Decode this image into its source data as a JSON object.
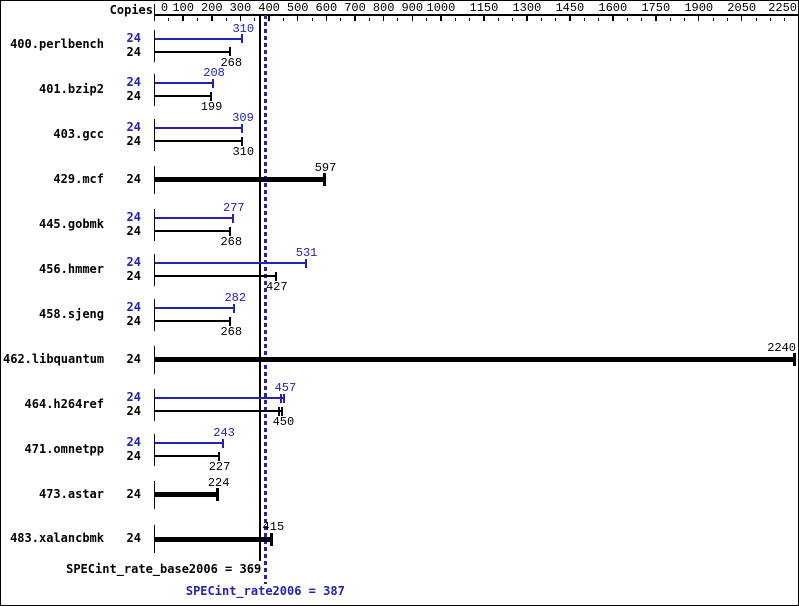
{
  "chart_data": {
    "type": "bar",
    "orientation": "horizontal",
    "copies_header": "Copies",
    "accent_color": "#2222b4",
    "base_color": "#000000",
    "axis": {
      "position": "top",
      "min": 0,
      "max": 2250,
      "major_ticks": [
        0,
        100,
        200,
        300,
        400,
        500,
        600,
        700,
        800,
        900,
        1000,
        1150,
        1300,
        1450,
        1600,
        1750,
        1900,
        2050,
        2250
      ],
      "minor_tick_step": 50,
      "grid": false
    },
    "legend_note": "blue bar = peak (SPECint_rate2006), black bar = base; bold single bar = base and peak identical",
    "benchmarks": [
      {
        "name": "400.perlbench",
        "copies_peak": 24,
        "copies_base": 24,
        "peak": 310,
        "base": 268
      },
      {
        "name": "401.bzip2",
        "copies_peak": 24,
        "copies_base": 24,
        "peak": 208,
        "base": 199
      },
      {
        "name": "403.gcc",
        "copies_peak": 24,
        "copies_base": 24,
        "peak": 309,
        "base": 310
      },
      {
        "name": "429.mcf",
        "copies": 24,
        "single": 597
      },
      {
        "name": "445.gobmk",
        "copies_peak": 24,
        "copies_base": 24,
        "peak": 277,
        "base": 268
      },
      {
        "name": "456.hmmer",
        "copies_peak": 24,
        "copies_base": 24,
        "peak": 531,
        "base": 427
      },
      {
        "name": "458.sjeng",
        "copies_peak": 24,
        "copies_base": 24,
        "peak": 282,
        "base": 268
      },
      {
        "name": "462.libquantum",
        "copies": 24,
        "single": 2240
      },
      {
        "name": "464.h264ref",
        "copies_peak": 24,
        "copies_base": 24,
        "peak": 457,
        "base": 450,
        "run_ticks": true
      },
      {
        "name": "471.omnetpp",
        "copies_peak": 24,
        "copies_base": 24,
        "peak": 243,
        "base": 227
      },
      {
        "name": "473.astar",
        "copies": 24,
        "single": 224
      },
      {
        "name": "483.xalancbmk",
        "copies": 24,
        "single": 415
      }
    ],
    "summary": {
      "separator": " = ",
      "base": {
        "label": "SPECint_rate_base2006",
        "value": 369
      },
      "peak": {
        "label": "SPECint_rate2006",
        "value": 387
      }
    }
  }
}
